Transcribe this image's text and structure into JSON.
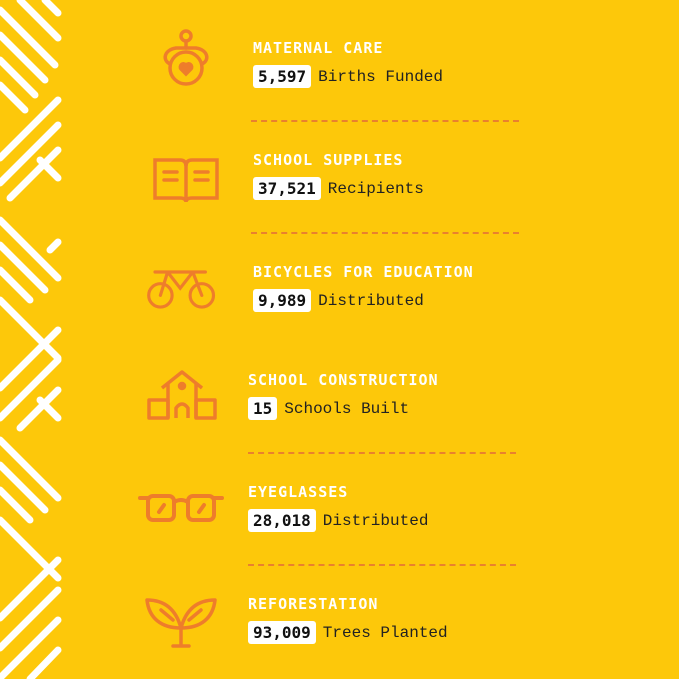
{
  "colors": {
    "background": "#fdc80a",
    "icon": "#ee7d2b",
    "title": "#ffffff",
    "divider": "#e9812e"
  },
  "items": [
    {
      "title": "MATERNAL CARE",
      "value": "5,597",
      "unit": "Births Funded",
      "icon": "mother-baby-icon"
    },
    {
      "title": "SCHOOL SUPPLIES",
      "value": "37,521",
      "unit": "Recipients",
      "icon": "book-icon"
    },
    {
      "title": "BICYCLES FOR EDUCATION",
      "value": "9,989",
      "unit": "Distributed",
      "icon": "bicycle-icon"
    },
    {
      "title": "SCHOOL CONSTRUCTION",
      "value": "15",
      "unit": "Schools Built",
      "icon": "school-icon"
    },
    {
      "title": "EYEGLASSES",
      "value": "28,018",
      "unit": "Distributed",
      "icon": "eyeglasses-icon"
    },
    {
      "title": "REFORESTATION",
      "value": "93,009",
      "unit": "Trees Planted",
      "icon": "sprout-icon"
    }
  ]
}
